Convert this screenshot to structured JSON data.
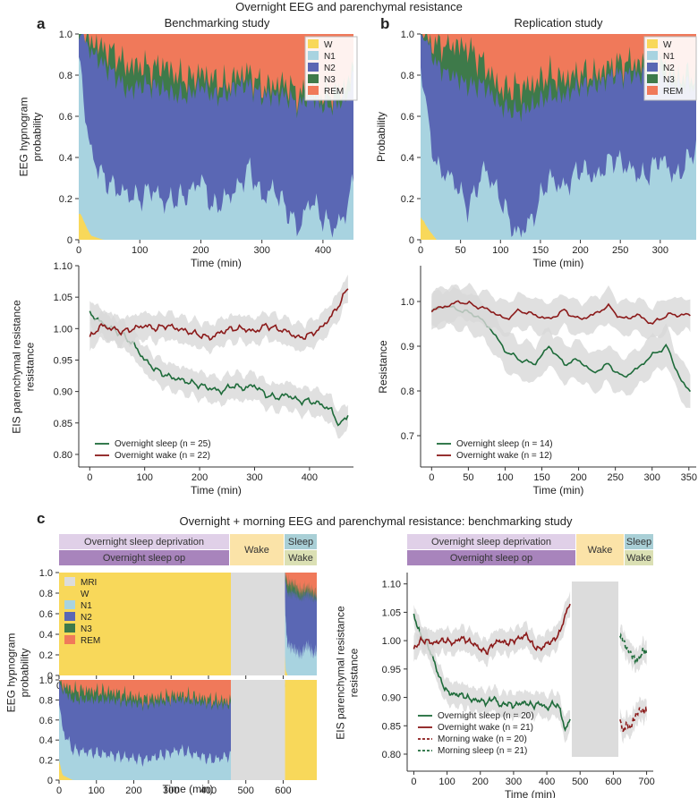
{
  "titles": {
    "main": "Overnight EEG and parenchymal resistance",
    "panel_a": "a",
    "panel_b": "b",
    "panel_c": "c",
    "study_a": "Benchmarking study",
    "study_b": "Replication study",
    "panel_c_title": "Overnight + morning EEG and parenchymal resistance: benchmarking study"
  },
  "colors": {
    "W": "#f8d85a",
    "N1": "#a8d3e0",
    "N2": "#5a67b4",
    "N3": "#3e7a4a",
    "REM": "#f0795a",
    "MRI": "#dcdcdc",
    "sleep": "#1e6b3a",
    "wake": "#8b1a1a",
    "ci": "#d8d8d8",
    "band_dep": "#e0d0e8",
    "band_op": "#a884bc",
    "band_wake": "#fbe3a8",
    "band_sleep": "#a9cfd6",
    "band_wake2": "#dbe0b4"
  },
  "chart_data": [
    {
      "id": "a-top",
      "type": "area",
      "ylabel_lines": [
        "EEG hypnogram",
        "probability"
      ],
      "xlabel": "Time (min)",
      "xlim": [
        0,
        450
      ],
      "ylim": [
        0,
        1
      ],
      "xticks": [
        0,
        100,
        200,
        300,
        400
      ],
      "yticks": [
        "0",
        "0.2",
        "0.4",
        "0.6",
        "0.8",
        "1.0"
      ],
      "legend": [
        "W",
        "N1",
        "N2",
        "N3",
        "REM"
      ],
      "series_approx": {
        "x": [
          0,
          10,
          20,
          40,
          60,
          80,
          100,
          120,
          140,
          160,
          180,
          200,
          220,
          240,
          260,
          280,
          300,
          320,
          340,
          360,
          380,
          400,
          420,
          440,
          450
        ],
        "W": [
          0.15,
          0.08,
          0.02,
          0,
          0,
          0,
          0,
          0,
          0,
          0,
          0,
          0,
          0,
          0,
          0,
          0,
          0,
          0,
          0,
          0,
          0,
          0,
          0,
          0,
          0
        ],
        "N1": [
          0.85,
          0.55,
          0.4,
          0.3,
          0.25,
          0.22,
          0.2,
          0.25,
          0.18,
          0.2,
          0.22,
          0.3,
          0.15,
          0.2,
          0.25,
          0.35,
          0.2,
          0.25,
          0.15,
          0.05,
          0.2,
          0.1,
          0.05,
          0.15,
          0.3
        ],
        "N2": [
          0.1,
          0.35,
          0.5,
          0.55,
          0.55,
          0.5,
          0.55,
          0.5,
          0.55,
          0.5,
          0.48,
          0.45,
          0.55,
          0.5,
          0.5,
          0.4,
          0.5,
          0.45,
          0.55,
          0.6,
          0.5,
          0.55,
          0.6,
          0.55,
          0.5
        ],
        "N3": [
          0,
          0.01,
          0.05,
          0.08,
          0.1,
          0.12,
          0.1,
          0.08,
          0.12,
          0.1,
          0.08,
          0.06,
          0.08,
          0.05,
          0.05,
          0.06,
          0.04,
          0.05,
          0.06,
          0.05,
          0.04,
          0.05,
          0.06,
          0.05,
          0.04
        ]
      }
    },
    {
      "id": "b-top",
      "type": "area",
      "ylabel_lines": [
        "Probability"
      ],
      "xlabel": "Time (min)",
      "xlim": [
        0,
        345
      ],
      "ylim": [
        0,
        1
      ],
      "xticks": [
        0,
        50,
        100,
        150,
        200,
        250,
        300
      ],
      "yticks": [
        "0",
        "0.2",
        "0.4",
        "0.6",
        "0.8",
        "1.0"
      ],
      "legend": [
        "W",
        "N1",
        "N2",
        "N3",
        "REM"
      ],
      "series_approx": {
        "x": [
          0,
          10,
          20,
          40,
          60,
          80,
          100,
          120,
          140,
          160,
          180,
          200,
          220,
          240,
          260,
          280,
          300,
          320,
          345
        ],
        "W": [
          0.12,
          0.05,
          0,
          0,
          0,
          0,
          0,
          0,
          0,
          0,
          0,
          0,
          0,
          0,
          0,
          0,
          0,
          0,
          0
        ],
        "N1": [
          0.8,
          0.5,
          0.35,
          0.3,
          0.15,
          0.35,
          0.2,
          0.02,
          0.1,
          0.3,
          0.25,
          0.35,
          0.3,
          0.4,
          0.35,
          0.3,
          0.4,
          0.3,
          0.45
        ],
        "N2": [
          0.15,
          0.4,
          0.5,
          0.5,
          0.6,
          0.4,
          0.45,
          0.6,
          0.55,
          0.4,
          0.45,
          0.4,
          0.45,
          0.4,
          0.45,
          0.5,
          0.4,
          0.45,
          0.3
        ],
        "N3": [
          0,
          0.02,
          0.1,
          0.15,
          0.18,
          0.1,
          0.08,
          0.12,
          0.1,
          0.1,
          0.08,
          0.06,
          0.05,
          0.05,
          0.06,
          0.05,
          0.05,
          0.04,
          0.05
        ]
      }
    },
    {
      "id": "a-bottom",
      "type": "line",
      "ylabel_lines": [
        "EIS parenchymal resistance",
        "resistance"
      ],
      "xlabel": "Time (min)",
      "xlim": [
        -20,
        480
      ],
      "ylim": [
        0.78,
        1.1
      ],
      "xticks": [
        0,
        100,
        200,
        300,
        400
      ],
      "yticks": [
        0.8,
        0.85,
        0.9,
        0.95,
        1.0,
        1.05,
        1.1
      ],
      "ytick_labels": [
        "0.80",
        "0.85",
        "0.90",
        "0.95",
        "1.00",
        "1.05",
        "1.10"
      ],
      "legend": [
        "Overnight sleep (n = 25)",
        "Overnight wake (n = 22)"
      ],
      "series": [
        {
          "name": "Overnight sleep",
          "x": [
            0,
            20,
            40,
            60,
            80,
            100,
            120,
            140,
            160,
            180,
            200,
            220,
            240,
            260,
            280,
            300,
            320,
            340,
            360,
            380,
            400,
            420,
            440,
            455,
            470
          ],
          "values": [
            1.025,
            1.01,
            1.0,
            0.99,
            0.975,
            0.95,
            0.935,
            0.925,
            0.92,
            0.915,
            0.91,
            0.905,
            0.9,
            0.91,
            0.905,
            0.91,
            0.895,
            0.89,
            0.895,
            0.885,
            0.885,
            0.88,
            0.87,
            0.845,
            0.865
          ],
          "ci": 0.02
        },
        {
          "name": "Overnight wake",
          "x": [
            0,
            20,
            40,
            60,
            80,
            100,
            120,
            140,
            160,
            180,
            200,
            220,
            240,
            260,
            280,
            300,
            320,
            340,
            360,
            380,
            400,
            420,
            440,
            455,
            470
          ],
          "values": [
            0.985,
            1.005,
            1.0,
            0.995,
            1.0,
            1.005,
            1.0,
            1.005,
            1.0,
            0.995,
            0.99,
            0.985,
            0.995,
            1.0,
            1.0,
            0.995,
            1.005,
            1.0,
            0.995,
            0.985,
            0.99,
            1.0,
            1.02,
            1.04,
            1.065
          ],
          "ci": 0.02
        }
      ]
    },
    {
      "id": "b-bottom",
      "type": "line",
      "ylabel_lines": [
        "Resistance"
      ],
      "xlabel": "Time (min)",
      "xlim": [
        -15,
        360
      ],
      "ylim": [
        0.63,
        1.08
      ],
      "xticks": [
        0,
        50,
        100,
        150,
        200,
        250,
        300,
        350
      ],
      "yticks": [
        0.7,
        0.8,
        0.9,
        1.0
      ],
      "ytick_labels": [
        "0.7",
        "0.8",
        "0.9",
        "1.0"
      ],
      "legend": [
        "Overnight sleep (n = 14)",
        "Overnight wake (n = 12)"
      ],
      "series": [
        {
          "name": "Overnight sleep",
          "x": [
            0,
            20,
            40,
            60,
            80,
            100,
            120,
            140,
            160,
            180,
            200,
            220,
            240,
            260,
            280,
            300,
            320,
            340,
            352
          ],
          "values": [
            0.98,
            0.99,
            0.98,
            0.97,
            0.94,
            0.89,
            0.87,
            0.86,
            0.9,
            0.86,
            0.87,
            0.84,
            0.86,
            0.83,
            0.85,
            0.88,
            0.9,
            0.82,
            0.8
          ],
          "ci": 0.04
        },
        {
          "name": "Overnight wake",
          "x": [
            0,
            20,
            40,
            60,
            80,
            100,
            120,
            140,
            160,
            180,
            200,
            220,
            240,
            260,
            280,
            300,
            320,
            340,
            352
          ],
          "values": [
            0.98,
            0.99,
            1.0,
            0.99,
            0.98,
            0.96,
            0.98,
            0.97,
            0.96,
            0.98,
            0.96,
            0.97,
            0.99,
            0.96,
            0.97,
            0.95,
            0.97,
            0.97,
            0.97
          ],
          "ci": 0.035
        }
      ]
    },
    {
      "id": "c-hyp1",
      "type": "area",
      "xlim": [
        0,
        690
      ],
      "ylim": [
        0,
        1
      ],
      "xticks": [
        0,
        100,
        200,
        300,
        400,
        500,
        600
      ],
      "yticks": [
        "0",
        "0.2",
        "0.4",
        "0.6",
        "0.8",
        "1.0"
      ],
      "legend": [
        "MRI",
        "W",
        "N1",
        "N2",
        "N3",
        "REM"
      ],
      "segments": [
        {
          "stage": "W",
          "from": 0,
          "to": 460
        },
        {
          "stage": "MRI",
          "from": 460,
          "to": 605
        },
        {
          "stage": "sleep-mix",
          "from": 605,
          "to": 690
        }
      ]
    },
    {
      "id": "c-hyp2",
      "type": "area",
      "xlabel": "Time (min)",
      "ylabel_lines": [
        "EEG hypnogram",
        "probability"
      ],
      "xlim": [
        0,
        690
      ],
      "ylim": [
        0,
        1
      ],
      "xticks": [
        0,
        100,
        200,
        300,
        400,
        500,
        600
      ],
      "yticks": [
        "0",
        "0.2",
        "0.4",
        "0.6",
        "0.8",
        "1.0"
      ],
      "segments": [
        {
          "stage": "sleep-mix",
          "from": 0,
          "to": 460
        },
        {
          "stage": "MRI",
          "from": 460,
          "to": 605
        },
        {
          "stage": "W",
          "from": 605,
          "to": 690
        }
      ]
    },
    {
      "id": "c-right",
      "type": "line",
      "ylabel_lines": [
        "EIS parenchymal resistance",
        "resistance"
      ],
      "xlabel": "Time (min)",
      "xlim": [
        -20,
        720
      ],
      "ylim": [
        0.77,
        1.12
      ],
      "xticks": [
        0,
        100,
        200,
        300,
        400,
        500,
        600,
        700
      ],
      "yticks": [
        0.8,
        0.85,
        0.9,
        0.95,
        1.0,
        1.05,
        1.1
      ],
      "ytick_labels": [
        "0.80",
        "0.85",
        "0.90",
        "0.95",
        "1.00",
        "1.05",
        "1.10"
      ],
      "mri_span": [
        475,
        615
      ],
      "legend": [
        "Overnight sleep (n = 20)",
        "Overnight wake (n = 21)",
        "Morning wake (n = 20)",
        "Morning sleep (n = 21)"
      ],
      "series": [
        {
          "name": "Overnight sleep",
          "dashed": false,
          "x": [
            0,
            20,
            40,
            60,
            80,
            100,
            120,
            140,
            160,
            180,
            200,
            220,
            240,
            260,
            280,
            300,
            320,
            340,
            360,
            380,
            400,
            420,
            440,
            455,
            470
          ],
          "values": [
            1.045,
            1.01,
            0.995,
            0.965,
            0.93,
            0.91,
            0.905,
            0.905,
            0.9,
            0.895,
            0.895,
            0.89,
            0.9,
            0.885,
            0.89,
            0.885,
            0.89,
            0.89,
            0.885,
            0.89,
            0.88,
            0.89,
            0.88,
            0.84,
            0.865
          ],
          "ci": 0.02
        },
        {
          "name": "Overnight wake",
          "dashed": false,
          "x": [
            0,
            20,
            40,
            60,
            80,
            100,
            120,
            140,
            160,
            180,
            200,
            220,
            240,
            260,
            280,
            300,
            320,
            340,
            360,
            380,
            400,
            420,
            440,
            455,
            470
          ],
          "values": [
            0.985,
            1.0,
            1.0,
            0.995,
            1.0,
            1.0,
            0.995,
            1.005,
            1.0,
            0.995,
            0.985,
            0.98,
            0.995,
            1.0,
            0.995,
            1.0,
            1.005,
            1.01,
            0.99,
            0.985,
            0.995,
            1.0,
            1.015,
            1.045,
            1.065
          ],
          "ci": 0.02
        },
        {
          "name": "Morning wake",
          "dashed": true,
          "x": [
            620,
            630,
            640,
            650,
            660,
            670,
            680,
            690,
            700
          ],
          "values": [
            0.86,
            0.84,
            0.855,
            0.845,
            0.86,
            0.87,
            0.88,
            0.875,
            0.88
          ],
          "ci": 0.018
        },
        {
          "name": "Morning sleep",
          "dashed": true,
          "x": [
            620,
            630,
            640,
            650,
            660,
            670,
            680,
            690,
            700
          ],
          "values": [
            1.01,
            1.0,
            0.985,
            0.98,
            0.97,
            0.965,
            0.97,
            0.985,
            0.975
          ],
          "ci": 0.018
        }
      ]
    }
  ],
  "bands": {
    "overnight_sleep_deprivation": "Overnight sleep deprivation",
    "overnight_sleep_op": "Overnight sleep op",
    "wake": "Wake",
    "sleep": "Sleep",
    "wake2": "Wake"
  }
}
